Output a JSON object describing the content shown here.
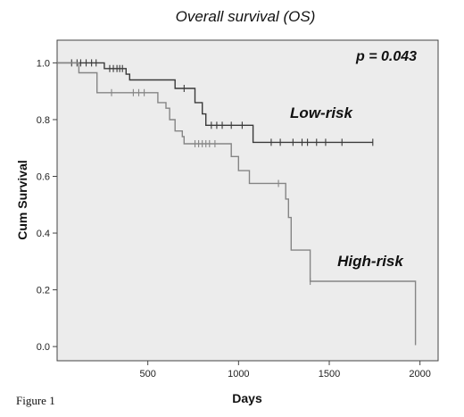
{
  "chart_data": {
    "type": "line",
    "title": "Overall survival (OS)",
    "xlabel": "Days",
    "ylabel": "Cum Survival",
    "xlim": [
      0,
      2100
    ],
    "ylim": [
      -0.05,
      1.08
    ],
    "x_ticks": [
      500,
      1000,
      1500,
      2000
    ],
    "y_ticks": [
      0.0,
      0.2,
      0.4,
      0.6,
      0.8,
      1.0
    ],
    "x_tick_labels": [
      "500",
      "1000",
      "1500",
      "2000"
    ],
    "y_tick_labels": [
      "0.0",
      "0.2",
      "0.4",
      "0.6",
      "0.8",
      "1.0"
    ],
    "grid": false,
    "plot_background": "#ececec",
    "annotation": "p = 0.043",
    "series": [
      {
        "name": "Low-risk",
        "color": "#3a3a3a",
        "steps": [
          [
            0,
            1.0
          ],
          [
            200,
            1.0
          ],
          [
            260,
            0.98
          ],
          [
            380,
            0.96
          ],
          [
            400,
            0.94
          ],
          [
            590,
            0.94
          ],
          [
            650,
            0.91
          ],
          [
            720,
            0.91
          ],
          [
            760,
            0.86
          ],
          [
            800,
            0.82
          ],
          [
            820,
            0.78
          ],
          [
            1060,
            0.78
          ],
          [
            1080,
            0.72
          ],
          [
            1740,
            0.72
          ]
        ],
        "censored": [
          [
            80,
            1.0
          ],
          [
            110,
            1.0
          ],
          [
            130,
            1.0
          ],
          [
            160,
            1.0
          ],
          [
            190,
            1.0
          ],
          [
            215,
            1.0
          ],
          [
            290,
            0.98
          ],
          [
            310,
            0.98
          ],
          [
            330,
            0.98
          ],
          [
            345,
            0.98
          ],
          [
            360,
            0.98
          ],
          [
            700,
            0.91
          ],
          [
            850,
            0.78
          ],
          [
            880,
            0.78
          ],
          [
            910,
            0.78
          ],
          [
            960,
            0.78
          ],
          [
            1020,
            0.78
          ],
          [
            1180,
            0.72
          ],
          [
            1230,
            0.72
          ],
          [
            1300,
            0.72
          ],
          [
            1350,
            0.72
          ],
          [
            1380,
            0.72
          ],
          [
            1430,
            0.72
          ],
          [
            1480,
            0.72
          ],
          [
            1570,
            0.72
          ],
          [
            1740,
            0.72
          ]
        ]
      },
      {
        "name": "High-risk",
        "color": "#858585",
        "steps": [
          [
            0,
            1.0
          ],
          [
            110,
            1.0
          ],
          [
            120,
            0.965
          ],
          [
            210,
            0.965
          ],
          [
            220,
            0.895
          ],
          [
            540,
            0.895
          ],
          [
            555,
            0.86
          ],
          [
            600,
            0.84
          ],
          [
            620,
            0.8
          ],
          [
            650,
            0.76
          ],
          [
            690,
            0.74
          ],
          [
            700,
            0.715
          ],
          [
            920,
            0.715
          ],
          [
            960,
            0.67
          ],
          [
            1000,
            0.62
          ],
          [
            1060,
            0.575
          ],
          [
            1230,
            0.575
          ],
          [
            1260,
            0.52
          ],
          [
            1275,
            0.455
          ],
          [
            1290,
            0.34
          ],
          [
            1380,
            0.34
          ],
          [
            1395,
            0.23
          ],
          [
            1970,
            0.23
          ],
          [
            1975,
            0.005
          ]
        ],
        "censored": [
          [
            300,
            0.895
          ],
          [
            420,
            0.895
          ],
          [
            450,
            0.895
          ],
          [
            480,
            0.895
          ],
          [
            760,
            0.715
          ],
          [
            780,
            0.715
          ],
          [
            800,
            0.715
          ],
          [
            820,
            0.715
          ],
          [
            840,
            0.715
          ],
          [
            870,
            0.715
          ],
          [
            1220,
            0.575
          ],
          [
            1395,
            0.23
          ]
        ]
      }
    ]
  },
  "caption": "Figure 1"
}
